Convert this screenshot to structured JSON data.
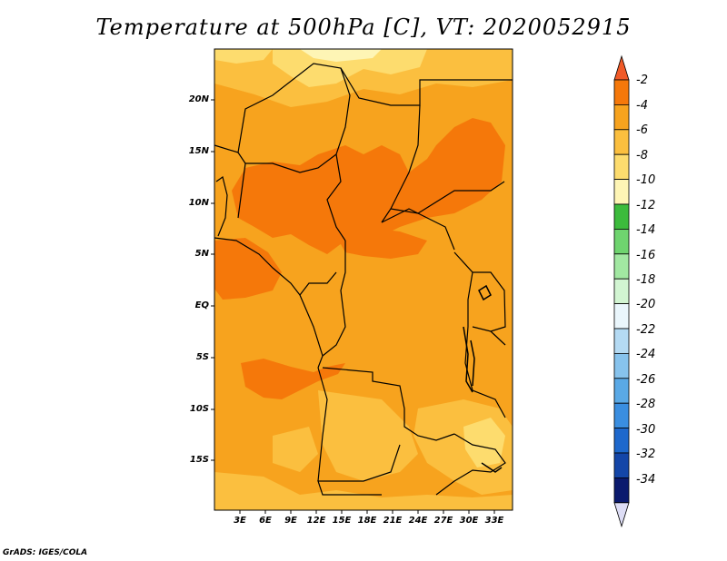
{
  "title": "Temperature at 500hPa [C], VT: 2020052915",
  "credit": "GrADS: IGES/COLA",
  "lat_labels": [
    "20N",
    "15N",
    "10N",
    "5N",
    "EQ",
    "5S",
    "10S",
    "15S"
  ],
  "lon_labels": [
    "3E",
    "6E",
    "9E",
    "12E",
    "15E",
    "18E",
    "21E",
    "24E",
    "27E",
    "30E",
    "33E"
  ],
  "colorbar": {
    "labels": [
      "-2",
      "-4",
      "-6",
      "-8",
      "-10",
      "-12",
      "-14",
      "-16",
      "-18",
      "-20",
      "-22",
      "-24",
      "-26",
      "-28",
      "-30",
      "-32",
      "-34"
    ],
    "colors": [
      "#f05a28",
      "#f5780a",
      "#f7a31e",
      "#fbbf3f",
      "#fddc6e",
      "#fef5b5",
      "#3cbb3c",
      "#6fd46f",
      "#a2e8a2",
      "#d2f5d2",
      "#eaf6fc",
      "#b4daf3",
      "#87c3ed",
      "#5aa9e6",
      "#3a8ee0",
      "#1e68cc",
      "#1446a8",
      "#0b1a6e",
      "#ddddf5"
    ]
  },
  "map": {
    "field": "Temperature at 500hPa",
    "units": "C",
    "valid_time": "2020052915",
    "lat_range": [
      "20S",
      "24N"
    ],
    "lon_range": [
      "0E",
      "35E"
    ]
  }
}
